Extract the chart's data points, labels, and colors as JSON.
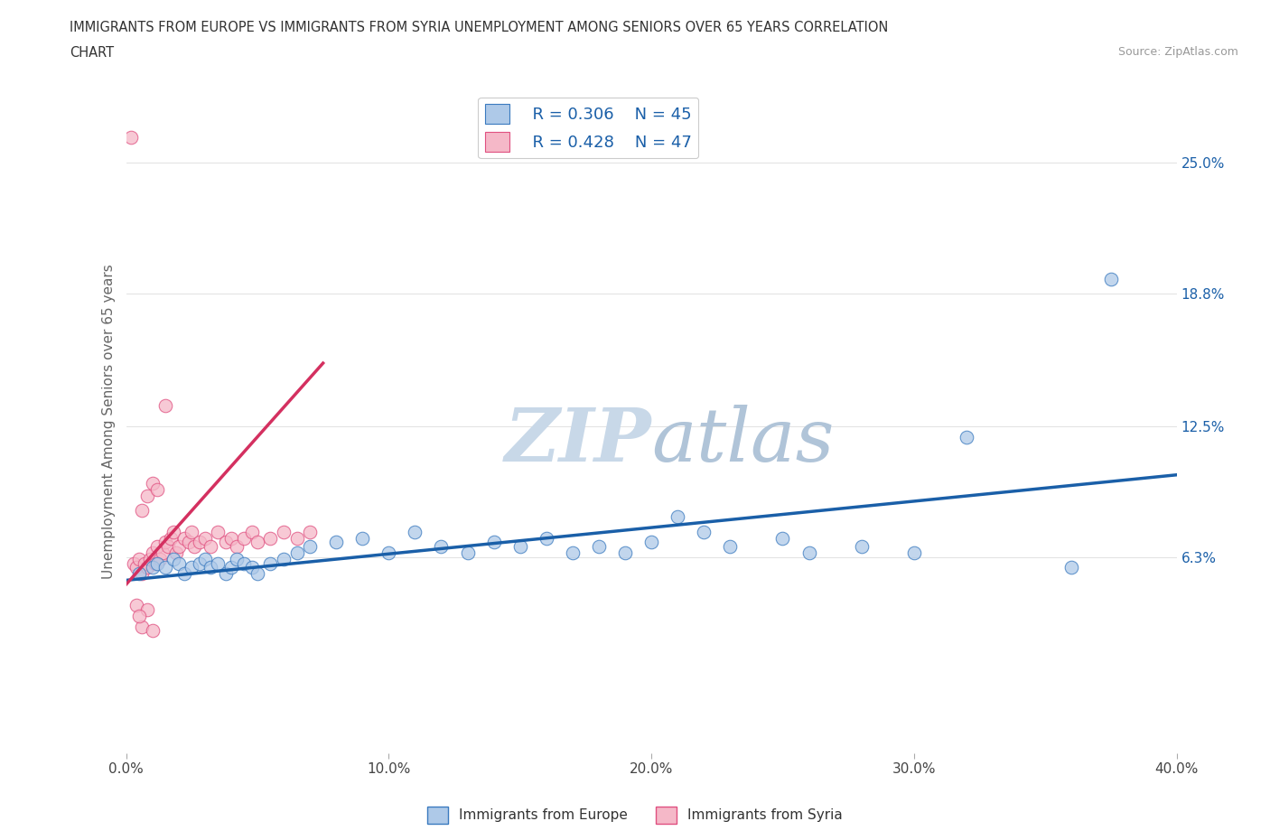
{
  "title_line1": "IMMIGRANTS FROM EUROPE VS IMMIGRANTS FROM SYRIA UNEMPLOYMENT AMONG SENIORS OVER 65 YEARS CORRELATION",
  "title_line2": "CHART",
  "source_text": "Source: ZipAtlas.com",
  "ylabel": "Unemployment Among Seniors over 65 years",
  "xlim": [
    0.0,
    0.4
  ],
  "ylim": [
    -0.03,
    0.285
  ],
  "yticks": [
    0.063,
    0.125,
    0.188,
    0.25
  ],
  "ytick_labels": [
    "6.3%",
    "12.5%",
    "18.8%",
    "25.0%"
  ],
  "xticks": [
    0.0,
    0.1,
    0.2,
    0.3,
    0.4
  ],
  "xtick_labels": [
    "0.0%",
    "10.0%",
    "20.0%",
    "30.0%",
    "40.0%"
  ],
  "legend_r1": "R = 0.306",
  "legend_n1": "N = 45",
  "legend_r2": "R = 0.428",
  "legend_n2": "N = 47",
  "color_europe": "#aec9e8",
  "color_syria": "#f5b8c8",
  "color_europe_dark": "#3a7abf",
  "color_syria_dark": "#e05080",
  "color_europe_line": "#1a5fa8",
  "color_syria_line": "#d43060",
  "watermark_color": "#c8d8e8",
  "europe_x": [
    0.005,
    0.01,
    0.012,
    0.015,
    0.018,
    0.02,
    0.022,
    0.025,
    0.028,
    0.03,
    0.032,
    0.035,
    0.038,
    0.04,
    0.042,
    0.045,
    0.048,
    0.05,
    0.055,
    0.06,
    0.065,
    0.07,
    0.08,
    0.09,
    0.1,
    0.11,
    0.12,
    0.13,
    0.14,
    0.15,
    0.16,
    0.17,
    0.18,
    0.19,
    0.2,
    0.21,
    0.22,
    0.23,
    0.25,
    0.26,
    0.28,
    0.3,
    0.32,
    0.36,
    0.375
  ],
  "europe_y": [
    0.055,
    0.058,
    0.06,
    0.058,
    0.062,
    0.06,
    0.055,
    0.058,
    0.06,
    0.062,
    0.058,
    0.06,
    0.055,
    0.058,
    0.062,
    0.06,
    0.058,
    0.055,
    0.06,
    0.062,
    0.065,
    0.068,
    0.07,
    0.072,
    0.065,
    0.075,
    0.068,
    0.065,
    0.07,
    0.068,
    0.072,
    0.065,
    0.068,
    0.065,
    0.07,
    0.082,
    0.075,
    0.068,
    0.072,
    0.065,
    0.068,
    0.065,
    0.12,
    0.058,
    0.195
  ],
  "syria_x": [
    0.002,
    0.003,
    0.004,
    0.005,
    0.006,
    0.007,
    0.008,
    0.009,
    0.01,
    0.011,
    0.012,
    0.013,
    0.014,
    0.015,
    0.016,
    0.017,
    0.018,
    0.019,
    0.02,
    0.022,
    0.024,
    0.025,
    0.026,
    0.028,
    0.03,
    0.032,
    0.035,
    0.038,
    0.04,
    0.042,
    0.045,
    0.048,
    0.05,
    0.055,
    0.06,
    0.065,
    0.07,
    0.006,
    0.008,
    0.01,
    0.012,
    0.015,
    0.004,
    0.008,
    0.006,
    0.01,
    0.005
  ],
  "syria_y": [
    0.262,
    0.06,
    0.058,
    0.062,
    0.055,
    0.06,
    0.058,
    0.062,
    0.065,
    0.06,
    0.068,
    0.062,
    0.065,
    0.07,
    0.068,
    0.072,
    0.075,
    0.065,
    0.068,
    0.072,
    0.07,
    0.075,
    0.068,
    0.07,
    0.072,
    0.068,
    0.075,
    0.07,
    0.072,
    0.068,
    0.072,
    0.075,
    0.07,
    0.072,
    0.075,
    0.072,
    0.075,
    0.085,
    0.092,
    0.098,
    0.095,
    0.135,
    0.04,
    0.038,
    0.03,
    0.028,
    0.035
  ],
  "eu_trend_x": [
    0.0,
    0.4
  ],
  "eu_trend_y": [
    0.052,
    0.102
  ],
  "sy_trend_x": [
    0.0,
    0.075
  ],
  "sy_trend_y": [
    0.05,
    0.155
  ]
}
